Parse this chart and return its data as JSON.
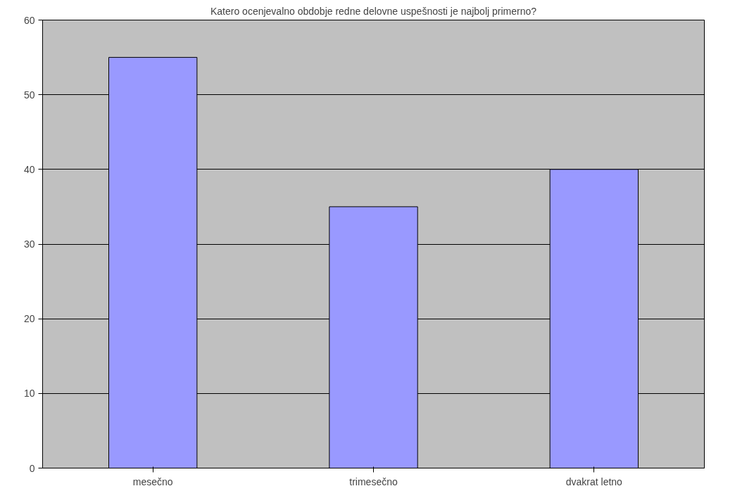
{
  "chart_data": {
    "type": "bar",
    "title": "Katero ocenjevalno obdobje redne delovne uspešnosti je najbolj primerno?",
    "categories": [
      "mesečno",
      "trimesečno",
      "dvakrat letno"
    ],
    "values": [
      55,
      35,
      40
    ],
    "color": "#9999ff",
    "ylim": [
      0,
      60
    ],
    "yticks": [
      0,
      10,
      20,
      30,
      40,
      50,
      60
    ],
    "grid": "y"
  }
}
